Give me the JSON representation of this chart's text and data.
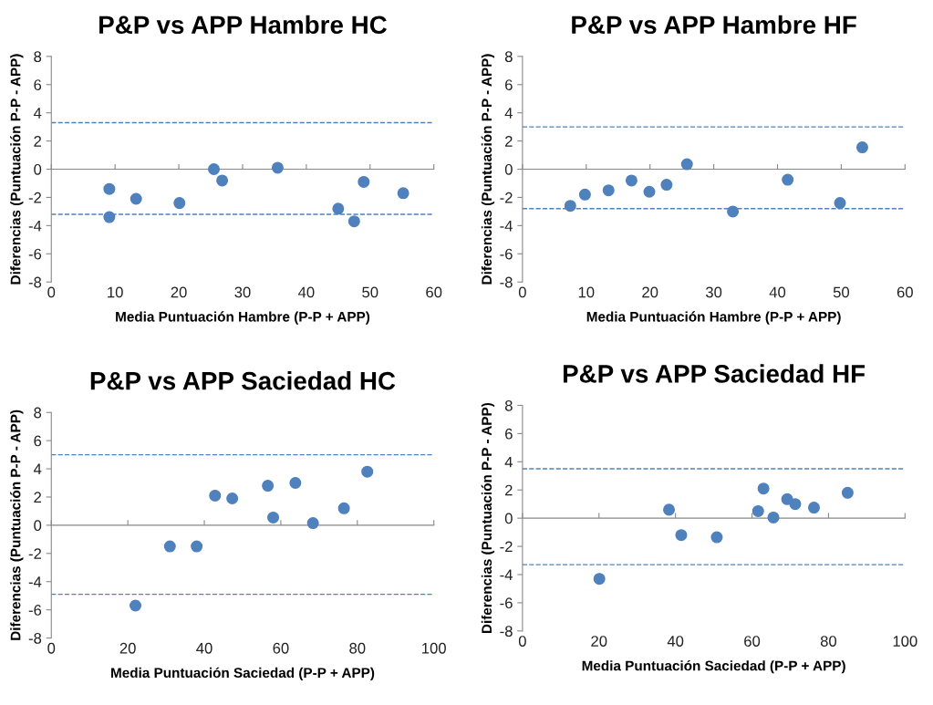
{
  "chart_data": [
    {
      "type": "scatter",
      "title": "P&P vs APP Hambre HC",
      "xlabel": "Media Puntuación Hambre (P-P + APP)",
      "ylabel": "Diferencias (Puntuación P-P - APP)",
      "xlim": [
        0,
        60
      ],
      "xticks": [
        0,
        10,
        20,
        30,
        40,
        50,
        60
      ],
      "ylim": [
        -8,
        8
      ],
      "yticks": [
        -8,
        -6,
        -4,
        -2,
        0,
        2,
        4,
        6,
        8
      ],
      "legend": false,
      "marker": "circle",
      "series": [
        {
          "color": "#4f81bd",
          "x": [
            9.1,
            9.1,
            13.3,
            20.1,
            25.5,
            26.8,
            35.5,
            45,
            47.5,
            49,
            55.2
          ],
          "values": [
            -1.4,
            -3.4,
            -2.1,
            -2.4,
            0,
            -0.8,
            0.1,
            -2.8,
            -3.7,
            -0.9,
            -1.7
          ]
        }
      ],
      "ref_lines": [
        {
          "axis": "y",
          "value": 3.3,
          "color": "#4f81bd",
          "line_style": "dashed"
        },
        {
          "axis": "y",
          "value": -3.2,
          "color": "#4f81bd",
          "line_style": "dashed"
        }
      ]
    },
    {
      "type": "scatter",
      "title": "P&P vs APP Hambre HF",
      "xlabel": "Media Puntuación Hambre (P-P + APP)",
      "ylabel": "Diferencias (Puntuación P-P - APP)",
      "xlim": [
        0,
        60
      ],
      "xticks": [
        0,
        10,
        20,
        30,
        40,
        50,
        60
      ],
      "ylim": [
        -8,
        8
      ],
      "yticks": [
        -8,
        -6,
        -4,
        -2,
        0,
        2,
        4,
        6,
        8
      ],
      "legend": false,
      "marker": "circle",
      "series": [
        {
          "color": "#4f81bd",
          "x": [
            7.5,
            9.8,
            13.5,
            17.1,
            19.9,
            22.6,
            25.8,
            33,
            41.6,
            49.8,
            53.3
          ],
          "values": [
            -2.6,
            -1.8,
            -1.5,
            -0.8,
            -1.6,
            -1.1,
            0.35,
            -3.0,
            -0.75,
            -2.4,
            1.55
          ]
        }
      ],
      "ref_lines": [
        {
          "axis": "y",
          "value": 3.0,
          "color": "#4f81bd",
          "line_style": "dashed"
        },
        {
          "axis": "y",
          "value": -2.8,
          "color": "#4f81bd",
          "line_style": "dashed"
        }
      ]
    },
    {
      "type": "scatter",
      "title": "P&P vs APP Saciedad HC",
      "xlabel": "Media Puntuación Saciedad (P-P + APP)",
      "ylabel": "Diferencias (Puntuación P-P - APP)",
      "xlim": [
        0,
        100
      ],
      "xticks": [
        0,
        20,
        40,
        60,
        80,
        100
      ],
      "ylim": [
        -8,
        8
      ],
      "yticks": [
        -8,
        -6,
        -4,
        -2,
        0,
        2,
        4,
        6,
        8
      ],
      "legend": false,
      "marker": "circle",
      "series": [
        {
          "color": "#4f81bd",
          "x": [
            22,
            31,
            38,
            42.8,
            47.3,
            56.6,
            58,
            63.8,
            68.4,
            76.5,
            82.6
          ],
          "values": [
            -5.7,
            -1.5,
            -1.5,
            2.1,
            1.9,
            2.8,
            0.55,
            3.0,
            0.15,
            1.2,
            3.8
          ]
        }
      ],
      "ref_lines": [
        {
          "axis": "y",
          "value": 5.0,
          "color": "#4f81bd",
          "line_style": "dashed"
        },
        {
          "axis": "y",
          "value": -4.9,
          "color": "#4f81bd",
          "line_style": "dashed"
        }
      ]
    },
    {
      "type": "scatter",
      "title": "P&P vs APP Saciedad HF",
      "xlabel": "Media Puntuación Saciedad (P-P + APP)",
      "ylabel": "Diferencias (Puntuación P-P - APP)",
      "xlim": [
        0,
        100
      ],
      "xticks": [
        0,
        20,
        40,
        60,
        80,
        100
      ],
      "ylim": [
        -8,
        8
      ],
      "yticks": [
        -8,
        -6,
        -4,
        -2,
        0,
        2,
        4,
        6,
        8
      ],
      "legend": false,
      "marker": "circle",
      "series": [
        {
          "color": "#4f81bd",
          "x": [
            20.1,
            38.3,
            41.5,
            50.8,
            61.6,
            63,
            65.6,
            69.2,
            71.3,
            76.2,
            85
          ],
          "values": [
            -4.3,
            0.6,
            -1.2,
            -1.35,
            0.5,
            2.1,
            0.05,
            1.35,
            1.0,
            0.75,
            1.8
          ]
        }
      ],
      "ref_lines": [
        {
          "axis": "y",
          "value": 3.5,
          "color": "#4f81bd",
          "line_style": "dashed"
        },
        {
          "axis": "y",
          "value": -3.3,
          "color": "#4f81bd",
          "line_style": "dashed"
        }
      ]
    }
  ]
}
